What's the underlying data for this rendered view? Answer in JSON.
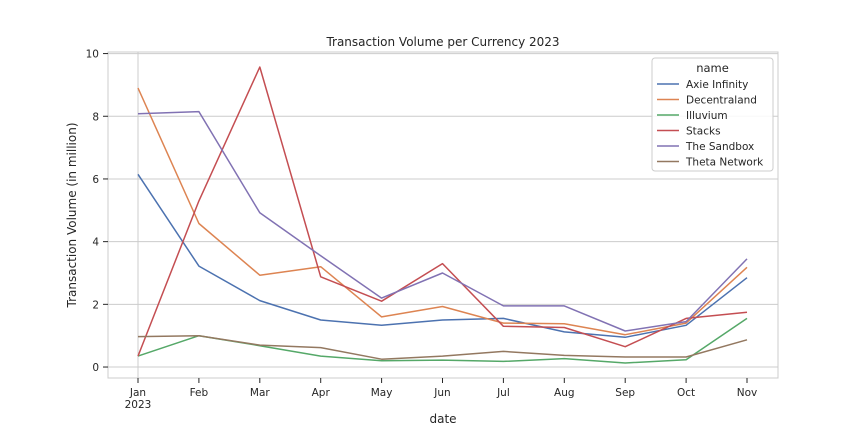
{
  "chart_data": {
    "type": "line",
    "title": "Transaction Volume per Currency 2023",
    "xlabel": "date",
    "ylabel": "Transaction Volume (in million)",
    "categories": [
      "Jan",
      "Feb",
      "Mar",
      "Apr",
      "May",
      "Jun",
      "Jul",
      "Aug",
      "Sep",
      "Oct",
      "Nov"
    ],
    "first_tick_year": "2023",
    "ylim": [
      -0.35,
      10.05
    ],
    "yticks": [
      0,
      2,
      4,
      6,
      8,
      10
    ],
    "grid": true,
    "legend": {
      "title": "name",
      "placement": "top-right"
    },
    "series": [
      {
        "name": "Axie Infinity",
        "color": "#4c72b0",
        "values": [
          6.15,
          3.22,
          2.12,
          1.5,
          1.33,
          1.5,
          1.55,
          1.12,
          0.95,
          1.33,
          2.85
        ]
      },
      {
        "name": "Decentraland",
        "color": "#dd8452",
        "values": [
          8.9,
          4.58,
          2.93,
          3.2,
          1.6,
          1.93,
          1.4,
          1.38,
          1.03,
          1.4,
          3.18
        ]
      },
      {
        "name": "Illuvium",
        "color": "#55a868",
        "values": [
          0.35,
          1.0,
          0.68,
          0.35,
          0.2,
          0.22,
          0.18,
          0.27,
          0.13,
          0.23,
          1.55
        ]
      },
      {
        "name": "Stacks",
        "color": "#c44e52",
        "values": [
          0.35,
          5.3,
          9.57,
          2.88,
          2.1,
          3.3,
          1.3,
          1.26,
          0.65,
          1.55,
          1.75
        ]
      },
      {
        "name": "The Sandbox",
        "color": "#8172b3",
        "values": [
          8.08,
          8.15,
          4.92,
          3.55,
          2.2,
          3.0,
          1.95,
          1.95,
          1.15,
          1.45,
          3.45
        ]
      },
      {
        "name": "Theta Network",
        "color": "#937860",
        "values": [
          0.97,
          1.0,
          0.7,
          0.62,
          0.25,
          0.35,
          0.5,
          0.37,
          0.32,
          0.32,
          0.87
        ]
      }
    ]
  }
}
